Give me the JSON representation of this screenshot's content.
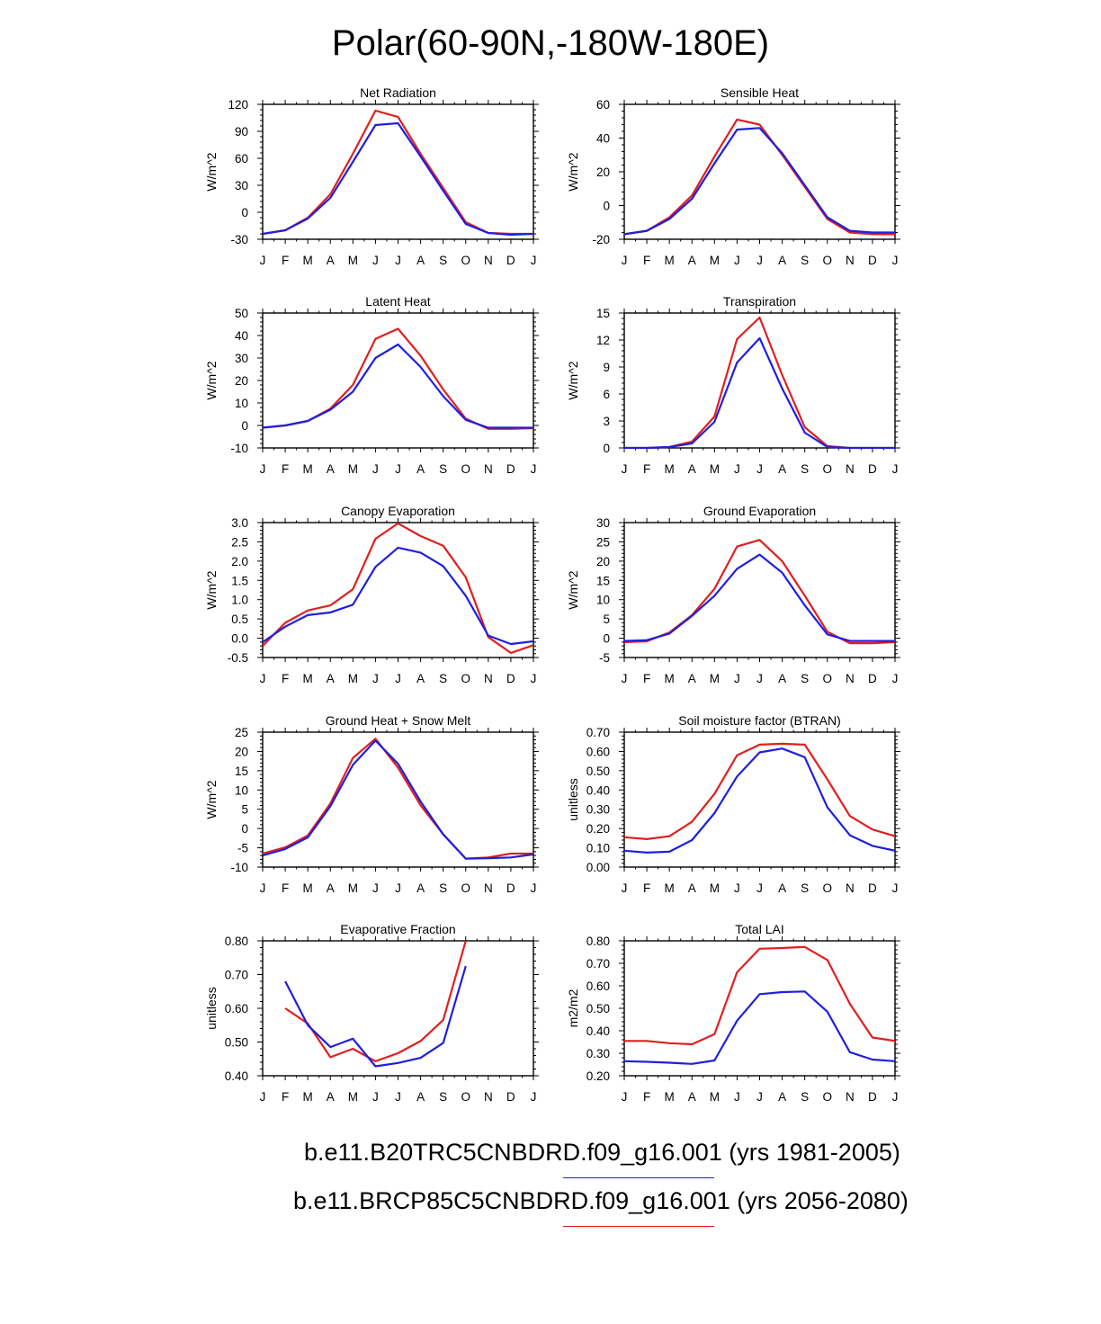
{
  "title": "Polar(60-90N,-180W-180E)",
  "colors": {
    "base": "#1f1fe0",
    "future": "#e01f1f"
  },
  "legend": [
    {
      "label": "b.e11.B20TRC5CNBDRD.f09_g16.001 (yrs 1981-2005)",
      "color": "#1f1fe0"
    },
    {
      "label": "b.e11.BRCP85C5CNBDRD.f09_g16.001 (yrs 2056-2080)",
      "color": "#e01f1f"
    }
  ],
  "chart_data": [
    {
      "type": "line",
      "title": "Net Radiation",
      "ylabel": "W/m^2",
      "categories": [
        "J",
        "F",
        "M",
        "A",
        "M",
        "J",
        "J",
        "A",
        "S",
        "O",
        "N",
        "D",
        "J"
      ],
      "ylim": [
        -30,
        120
      ],
      "yticks": [
        -30,
        0,
        30,
        60,
        90,
        120
      ],
      "ytick_labels": [
        "-30",
        "0",
        "30",
        "60",
        "90",
        "120"
      ],
      "series": [
        {
          "name": "b.e11.B20TRC5CNBDRD.f09_g16.001 (yrs 1981-2005)",
          "color": "#1f1fe0",
          "values": [
            -24,
            -20,
            -7,
            16,
            56,
            97,
            99,
            62,
            24,
            -13,
            -23,
            -25,
            -24
          ]
        },
        {
          "name": "b.e11.BRCP85C5CNBDRD.f09_g16.001 (yrs 2056-2080)",
          "color": "#e01f1f",
          "values": [
            -24,
            -20,
            -6,
            20,
            65,
            113,
            106,
            65,
            27,
            -11,
            -23,
            -24,
            -24
          ]
        }
      ]
    },
    {
      "type": "line",
      "title": "Sensible Heat",
      "ylabel": "W/m^2",
      "categories": [
        "J",
        "F",
        "M",
        "A",
        "M",
        "J",
        "J",
        "A",
        "S",
        "O",
        "N",
        "D",
        "J"
      ],
      "ylim": [
        -20,
        60
      ],
      "yticks": [
        -20,
        0,
        20,
        40,
        60
      ],
      "ytick_labels": [
        "-20",
        "0",
        "20",
        "40",
        "60"
      ],
      "series": [
        {
          "name": "b.e11.B20TRC5CNBDRD.f09_g16.001 (yrs 1981-2005)",
          "color": "#1f1fe0",
          "values": [
            -17,
            -15,
            -8,
            4,
            25,
            45,
            46,
            31,
            12,
            -7,
            -15,
            -16,
            -16
          ]
        },
        {
          "name": "b.e11.BRCP85C5CNBDRD.f09_g16.001 (yrs 2056-2080)",
          "color": "#e01f1f",
          "values": [
            -17,
            -15,
            -7,
            6,
            29,
            51,
            48,
            30,
            11,
            -8,
            -16,
            -17,
            -17
          ]
        }
      ]
    },
    {
      "type": "line",
      "title": "Latent Heat",
      "ylabel": "W/m^2",
      "categories": [
        "J",
        "F",
        "M",
        "A",
        "M",
        "J",
        "J",
        "A",
        "S",
        "O",
        "N",
        "D",
        "J"
      ],
      "ylim": [
        -10,
        50
      ],
      "yticks": [
        -10,
        0,
        10,
        20,
        30,
        40,
        50
      ],
      "ytick_labels": [
        "-10",
        "0",
        "10",
        "20",
        "30",
        "40",
        "50"
      ],
      "series": [
        {
          "name": "b.e11.B20TRC5CNBDRD.f09_g16.001 (yrs 1981-2005)",
          "color": "#1f1fe0",
          "values": [
            -1,
            0,
            2,
            7,
            15,
            30,
            36,
            26,
            13,
            2.5,
            -1,
            -1,
            -1
          ]
        },
        {
          "name": "b.e11.BRCP85C5CNBDRD.f09_g16.001 (yrs 2056-2080)",
          "color": "#e01f1f",
          "values": [
            -1,
            0,
            2,
            7.5,
            18,
            38.5,
            43,
            31,
            16,
            3,
            -1.5,
            -1.5,
            -1.2
          ]
        }
      ]
    },
    {
      "type": "line",
      "title": "Transpiration",
      "ylabel": "W/m^2",
      "categories": [
        "J",
        "F",
        "M",
        "A",
        "M",
        "J",
        "J",
        "A",
        "S",
        "O",
        "N",
        "D",
        "J"
      ],
      "ylim": [
        0,
        15
      ],
      "yticks": [
        0,
        3,
        6,
        9,
        12,
        15
      ],
      "ytick_labels": [
        "0",
        "3",
        "6",
        "9",
        "12",
        "15"
      ],
      "series": [
        {
          "name": "b.e11.B20TRC5CNBDRD.f09_g16.001 (yrs 1981-2005)",
          "color": "#1f1fe0",
          "values": [
            0,
            0,
            0.1,
            0.5,
            2.9,
            9.5,
            12.2,
            6.6,
            1.7,
            0.1,
            0,
            0,
            0
          ]
        },
        {
          "name": "b.e11.BRCP85C5CNBDRD.f09_g16.001 (yrs 2056-2080)",
          "color": "#e01f1f",
          "values": [
            0,
            0,
            0.1,
            0.7,
            3.5,
            12.1,
            14.5,
            8.1,
            2.3,
            0.2,
            0,
            0,
            0
          ]
        }
      ]
    },
    {
      "type": "line",
      "title": "Canopy Evaporation",
      "ylabel": "W/m^2",
      "categories": [
        "J",
        "F",
        "M",
        "A",
        "M",
        "J",
        "J",
        "A",
        "S",
        "O",
        "N",
        "D",
        "J"
      ],
      "ylim": [
        -0.5,
        3.0
      ],
      "yticks": [
        -0.5,
        0,
        0.5,
        1,
        1.5,
        2,
        2.5,
        3
      ],
      "ytick_labels": [
        "-0.5",
        "0.0",
        "0.5",
        "1.0",
        "1.5",
        "2.0",
        "2.5",
        "3.0"
      ],
      "series": [
        {
          "name": "b.e11.B20TRC5CNBDRD.f09_g16.001 (yrs 1981-2005)",
          "color": "#1f1fe0",
          "values": [
            -0.1,
            0.3,
            0.6,
            0.67,
            0.87,
            1.85,
            2.35,
            2.22,
            1.87,
            1.1,
            0.07,
            -0.15,
            -0.08
          ]
        },
        {
          "name": "b.e11.BRCP85C5CNBDRD.f09_g16.001 (yrs 2056-2080)",
          "color": "#e01f1f",
          "values": [
            -0.2,
            0.4,
            0.72,
            0.85,
            1.27,
            2.58,
            2.98,
            2.65,
            2.4,
            1.58,
            0.03,
            -0.38,
            -0.18
          ]
        }
      ]
    },
    {
      "type": "line",
      "title": "Ground Evaporation",
      "ylabel": "W/m^2",
      "categories": [
        "J",
        "F",
        "M",
        "A",
        "M",
        "J",
        "J",
        "A",
        "S",
        "O",
        "N",
        "D",
        "J"
      ],
      "ylim": [
        -5,
        30
      ],
      "yticks": [
        -5,
        0,
        5,
        10,
        15,
        20,
        25,
        30
      ],
      "ytick_labels": [
        "-5",
        "0",
        "5",
        "10",
        "15",
        "20",
        "25",
        "30"
      ],
      "series": [
        {
          "name": "b.e11.B20TRC5CNBDRD.f09_g16.001 (yrs 1981-2005)",
          "color": "#1f1fe0",
          "values": [
            -0.7,
            -0.5,
            1.2,
            5.8,
            11,
            18,
            21.7,
            17,
            8.5,
            1,
            -0.7,
            -0.7,
            -0.7
          ]
        },
        {
          "name": "b.e11.BRCP85C5CNBDRD.f09_g16.001 (yrs 2056-2080)",
          "color": "#e01f1f",
          "values": [
            -1,
            -0.8,
            1.5,
            6,
            12.8,
            23.8,
            25.5,
            20,
            11,
            1.7,
            -1.3,
            -1.3,
            -1
          ]
        }
      ]
    },
    {
      "type": "line",
      "title": "Ground Heat + Snow Melt",
      "ylabel": "W/m^2",
      "categories": [
        "J",
        "F",
        "M",
        "A",
        "M",
        "J",
        "J",
        "A",
        "S",
        "O",
        "N",
        "D",
        "J"
      ],
      "ylim": [
        -10,
        25
      ],
      "yticks": [
        -10,
        -5,
        0,
        5,
        10,
        15,
        20,
        25
      ],
      "ytick_labels": [
        "-10",
        "-5",
        "0",
        "5",
        "10",
        "15",
        "20",
        "25"
      ],
      "series": [
        {
          "name": "b.e11.B20TRC5CNBDRD.f09_g16.001 (yrs 1981-2005)",
          "color": "#1f1fe0",
          "values": [
            -7,
            -5.3,
            -2.3,
            5.8,
            16.5,
            22.8,
            16.8,
            7,
            -1.5,
            -7.8,
            -7.7,
            -7.5,
            -6.7
          ]
        },
        {
          "name": "b.e11.BRCP85C5CNBDRD.f09_g16.001 (yrs 2056-2080)",
          "color": "#e01f1f",
          "values": [
            -6.5,
            -4.9,
            -1.8,
            6.5,
            18.3,
            23.3,
            15.8,
            6,
            -1.5,
            -7.8,
            -7.5,
            -6.5,
            -6.5
          ]
        }
      ]
    },
    {
      "type": "line",
      "title": "Soil moisture factor (BTRAN)",
      "ylabel": "unitless",
      "categories": [
        "J",
        "F",
        "M",
        "A",
        "M",
        "J",
        "J",
        "A",
        "S",
        "O",
        "N",
        "D",
        "J"
      ],
      "ylim": [
        0,
        0.7
      ],
      "yticks": [
        0,
        0.1,
        0.2,
        0.3,
        0.4,
        0.5,
        0.6,
        0.7
      ],
      "ytick_labels": [
        "0.00",
        "0.10",
        "0.20",
        "0.30",
        "0.40",
        "0.50",
        "0.60",
        "0.70"
      ],
      "series": [
        {
          "name": "b.e11.B20TRC5CNBDRD.f09_g16.001 (yrs 1981-2005)",
          "color": "#1f1fe0",
          "values": [
            0.085,
            0.075,
            0.08,
            0.14,
            0.28,
            0.47,
            0.595,
            0.615,
            0.57,
            0.31,
            0.165,
            0.11,
            0.085
          ]
        },
        {
          "name": "b.e11.BRCP85C5CNBDRD.f09_g16.001 (yrs 2056-2080)",
          "color": "#e01f1f",
          "values": [
            0.155,
            0.145,
            0.16,
            0.235,
            0.38,
            0.58,
            0.635,
            0.64,
            0.635,
            0.455,
            0.265,
            0.195,
            0.16
          ]
        }
      ]
    },
    {
      "type": "line",
      "title": "Evaporative Fraction",
      "ylabel": "unitless",
      "categories": [
        "J",
        "F",
        "M",
        "A",
        "M",
        "J",
        "J",
        "A",
        "S",
        "O",
        "N",
        "D",
        "J"
      ],
      "ylim": [
        0.4,
        0.8
      ],
      "yticks": [
        0.4,
        0.5,
        0.6,
        0.7,
        0.8
      ],
      "ytick_labels": [
        "0.40",
        "0.50",
        "0.60",
        "0.70",
        "0.80"
      ],
      "series": [
        {
          "name": "b.e11.B20TRC5CNBDRD.f09_g16.001 (yrs 1981-2005)",
          "color": "#1f1fe0",
          "values": [
            null,
            0.68,
            0.55,
            0.485,
            0.51,
            0.428,
            0.438,
            0.453,
            0.497,
            0.725,
            null,
            null,
            null
          ]
        },
        {
          "name": "b.e11.BRCP85C5CNBDRD.f09_g16.001 (yrs 2056-2080)",
          "color": "#e01f1f",
          "values": [
            null,
            0.6,
            0.555,
            0.455,
            0.48,
            0.443,
            0.467,
            0.503,
            0.565,
            0.8,
            null,
            null,
            null
          ]
        }
      ]
    },
    {
      "type": "line",
      "title": "Total LAI",
      "ylabel": "m2/m2",
      "categories": [
        "J",
        "F",
        "M",
        "A",
        "M",
        "J",
        "J",
        "A",
        "S",
        "O",
        "N",
        "D",
        "J"
      ],
      "ylim": [
        0.2,
        0.8
      ],
      "yticks": [
        0.2,
        0.3,
        0.4,
        0.5,
        0.6,
        0.7,
        0.8
      ],
      "ytick_labels": [
        "0.20",
        "0.30",
        "0.40",
        "0.50",
        "0.60",
        "0.70",
        "0.80"
      ],
      "series": [
        {
          "name": "b.e11.B20TRC5CNBDRD.f09_g16.001 (yrs 1981-2005)",
          "color": "#1f1fe0",
          "values": [
            0.265,
            0.262,
            0.258,
            0.253,
            0.268,
            0.445,
            0.563,
            0.572,
            0.575,
            0.485,
            0.305,
            0.272,
            0.265
          ]
        },
        {
          "name": "b.e11.BRCP85C5CNBDRD.f09_g16.001 (yrs 2056-2080)",
          "color": "#e01f1f",
          "values": [
            0.355,
            0.355,
            0.345,
            0.34,
            0.385,
            0.66,
            0.765,
            0.768,
            0.773,
            0.715,
            0.52,
            0.37,
            0.355
          ]
        }
      ]
    }
  ]
}
